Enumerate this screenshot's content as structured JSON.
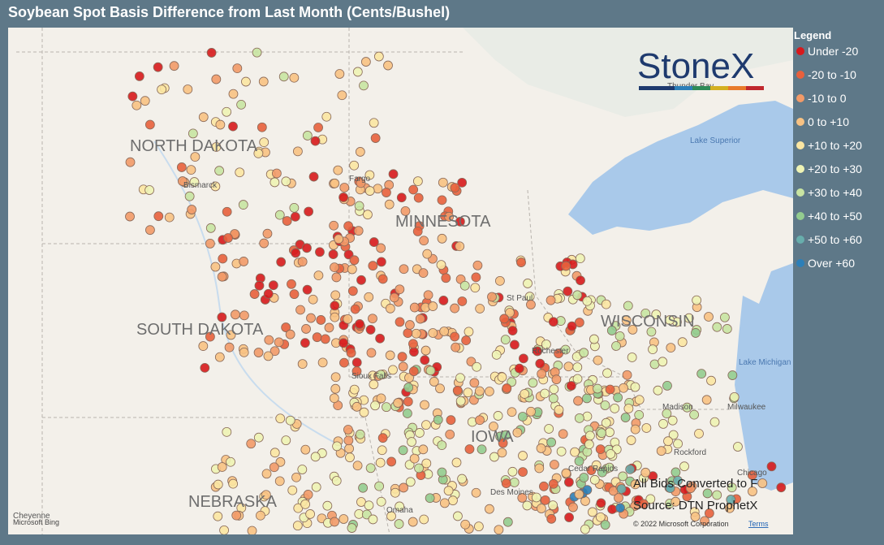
{
  "title": "Soybean Spot Basis Difference from Last Month (Cents/Bushel)",
  "logo": "StoneX",
  "legend": {
    "title": "Legend",
    "items": [
      {
        "label": "Under -20",
        "color": "#d7191c"
      },
      {
        "label": "-20 to -10",
        "color": "#e8603c"
      },
      {
        "label": "-10 to 0",
        "color": "#f29a68"
      },
      {
        "label": "0 to +10",
        "color": "#f8c283"
      },
      {
        "label": "+10 to +20",
        "color": "#fbe6a2"
      },
      {
        "label": "+20 to +30",
        "color": "#eef3b4"
      },
      {
        "label": "+30 to +40",
        "color": "#c8e4a2"
      },
      {
        "label": "+40 to +50",
        "color": "#93cc8f"
      },
      {
        "label": "+50 to +60",
        "color": "#68aeac"
      },
      {
        "label": "Over +60",
        "color": "#2c7fb8"
      }
    ]
  },
  "map_labels": [
    "NORTH DAKOTA",
    "SOUTH DAKOTA",
    "MINNESOTA",
    "WISCONSIN",
    "IOWA",
    "NEBRASKA"
  ],
  "cities": [
    "Bismarck",
    "Fargo",
    "St Paul",
    "Rochester",
    "Madison",
    "Milwaukee",
    "Rockford",
    "Chicago",
    "Cedar Rapids",
    "Des Moines",
    "Omaha",
    "Sioux Falls",
    "Cheyenne",
    "Thunder Bay"
  ],
  "water_labels": [
    "Lake Superior",
    "Lake Michigan"
  ],
  "notes": [
    "All Bids Converted to F",
    "Source: DTN ProphetX"
  ],
  "copyright": "© 2022 Microsoft Corporation",
  "terms": "Terms",
  "attribution": "Microsoft Bing"
}
